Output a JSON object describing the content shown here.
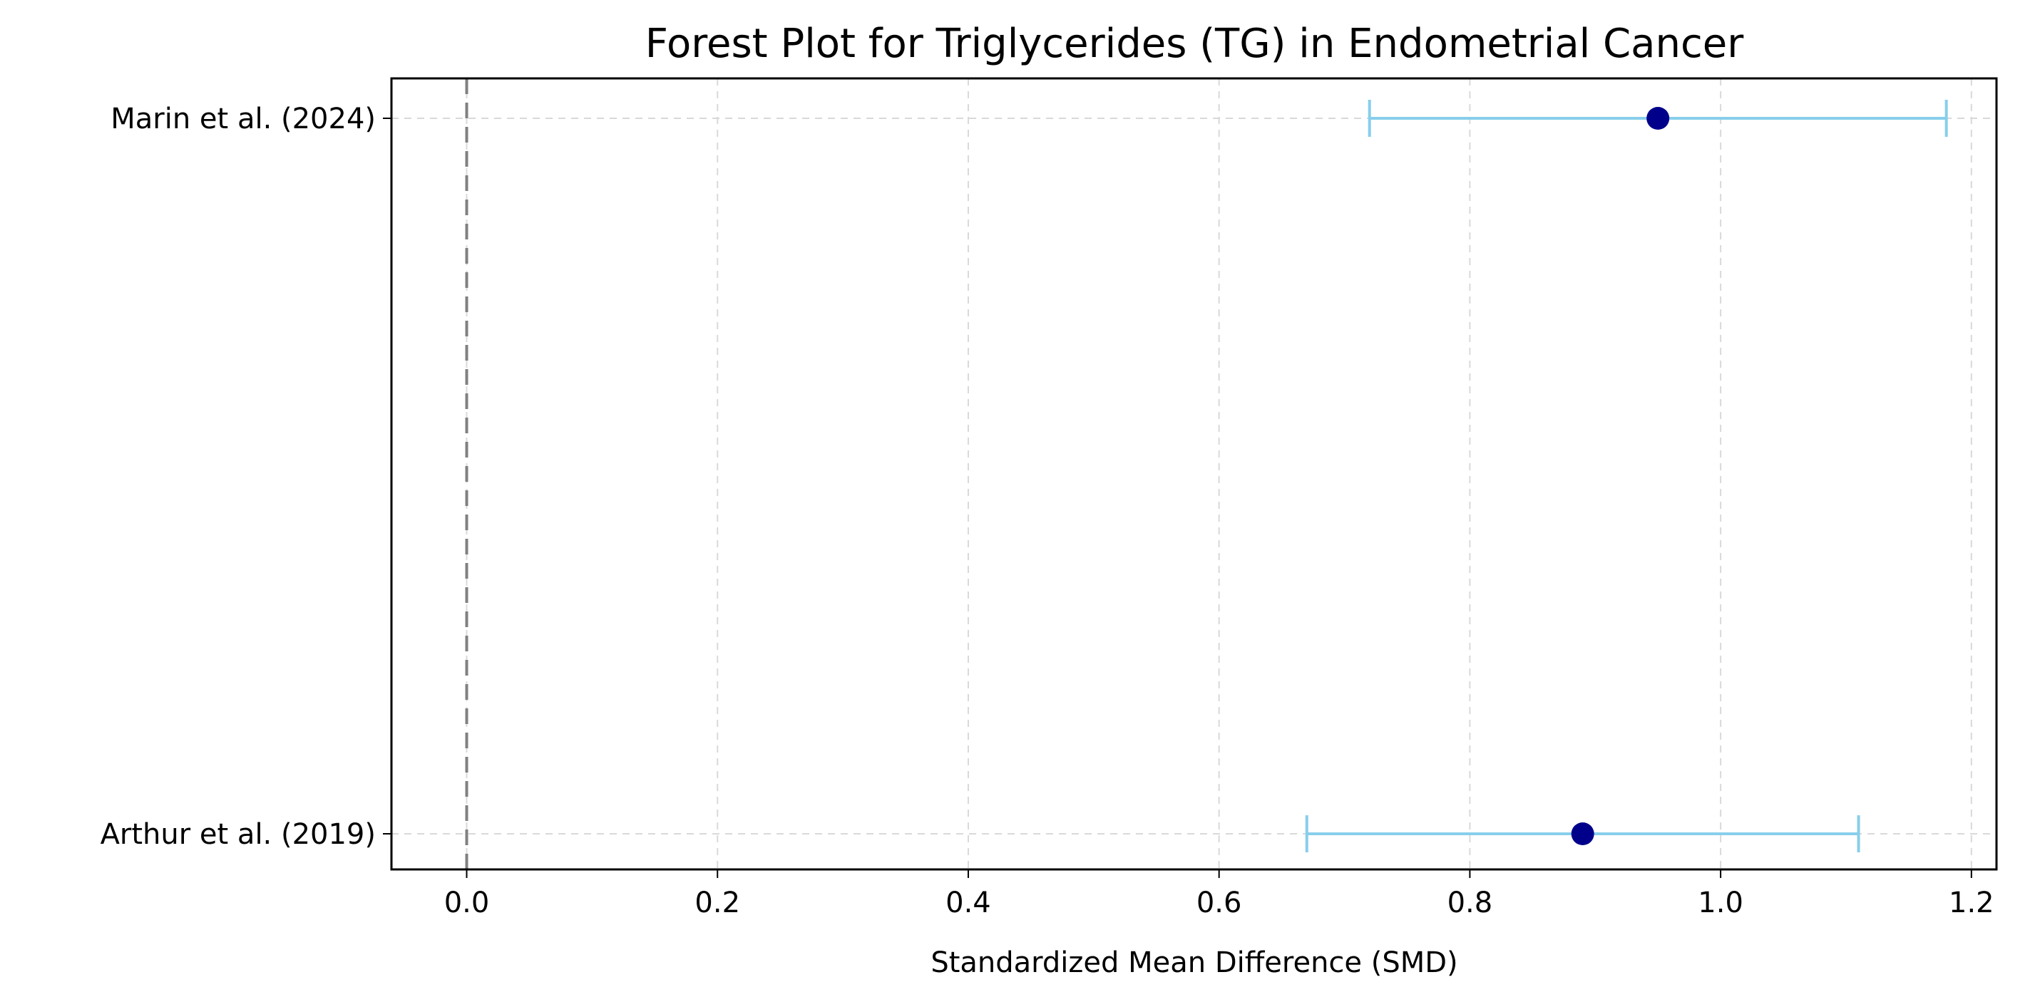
{
  "chart_data": {
    "type": "scatter",
    "subtype": "forest-plot",
    "title": "Forest Plot for Triglycerides (TG) in Endometrial Cancer",
    "xlabel": "Standardized Mean Difference (SMD)",
    "ylabel": "",
    "xlim": [
      -0.06,
      1.22
    ],
    "xticks": [
      0.0,
      0.2,
      0.4,
      0.6,
      0.8,
      1.0,
      1.2
    ],
    "xtick_labels": [
      "0.0",
      "0.2",
      "0.4",
      "0.6",
      "0.8",
      "1.0",
      "1.2"
    ],
    "grid": true,
    "reference_line": {
      "x": 0.0,
      "style": "dashed",
      "color": "#808080"
    },
    "studies": [
      {
        "label": "Marin et al. (2024)",
        "smd": 0.95,
        "ci_lower": 0.72,
        "ci_upper": 1.18
      },
      {
        "label": "Arthur et al. (2019)",
        "smd": 0.89,
        "ci_lower": 0.67,
        "ci_upper": 1.11
      }
    ],
    "colors": {
      "point": "#00008b",
      "errorbar": "#87ceeb",
      "grid": "#d9d9d9",
      "axes": "#000000"
    }
  }
}
